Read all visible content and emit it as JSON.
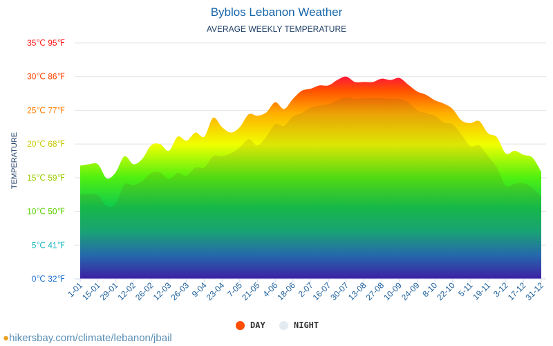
{
  "title": "Byblos Lebanon Weather",
  "subtitle": "AVERAGE WEEKLY TEMPERATURE",
  "source": "hikersbay.com/climate/lebanon/jbail",
  "chart_data": {
    "type": "area",
    "title": "Byblos Lebanon Weather",
    "subtitle": "AVERAGE WEEKLY TEMPERATURE",
    "ylabel": "TEMPERATURE",
    "ylim": [
      0,
      35
    ],
    "grid": true,
    "legend_position": "bottom",
    "yticks": [
      {
        "c": 0,
        "label": "0℃ 32℉",
        "color": "#1e6fd0"
      },
      {
        "c": 5,
        "label": "5℃ 41℉",
        "color": "#1ab8c0"
      },
      {
        "c": 10,
        "label": "10℃ 50℉",
        "color": "#5cd000"
      },
      {
        "c": 15,
        "label": "15℃ 59℉",
        "color": "#99cc00"
      },
      {
        "c": 20,
        "label": "20℃ 68℉",
        "color": "#c8c800"
      },
      {
        "c": 25,
        "label": "25℃ 77℉",
        "color": "#ff7a00"
      },
      {
        "c": 30,
        "label": "30℃ 86℉",
        "color": "#ff4500"
      },
      {
        "c": 35,
        "label": "35℃ 95℉",
        "color": "#ff1a1a"
      }
    ],
    "xticks": [
      "1-01",
      "15-01",
      "29-01",
      "12-02",
      "26-02",
      "12-03",
      "26-03",
      "9-04",
      "23-04",
      "7-05",
      "21-05",
      "4-06",
      "18-06",
      "2-07",
      "16-07",
      "30-07",
      "13-08",
      "27-08",
      "10-09",
      "24-09",
      "8-10",
      "22-10",
      "5-11",
      "19-11",
      "3-12",
      "17-12",
      "31-12"
    ],
    "series": [
      {
        "name": "DAY",
        "color": "#ff4d00",
        "values": [
          16.8,
          17,
          17,
          14.9,
          15.8,
          18.2,
          17,
          17.8,
          19.8,
          20,
          19,
          21.1,
          20.5,
          21.7,
          21.1,
          23.9,
          22.5,
          21.7,
          22.5,
          24.4,
          24.2,
          24.7,
          26.2,
          25.2,
          26.7,
          27.9,
          28.2,
          28.7,
          28.7,
          29.5,
          30,
          29.2,
          29.2,
          29.2,
          29.7,
          29.5,
          29.8,
          28.8,
          27.8,
          27.3,
          26.5,
          26,
          25.2,
          23.5,
          23.1,
          23.4,
          21.6,
          21,
          18.6,
          19,
          18.4,
          18,
          15.9
        ]
      },
      {
        "name": "NIGHT",
        "color": "#e3eaf2",
        "values": [
          12.5,
          12.6,
          12.4,
          10.8,
          11.1,
          14,
          13.9,
          14.5,
          15.7,
          15.8,
          14.8,
          15.7,
          15.3,
          16.5,
          16.5,
          18.2,
          18.2,
          18.6,
          19.5,
          20.7,
          19.8,
          21.1,
          22.9,
          22.7,
          24.1,
          24.6,
          25.4,
          25.7,
          25.9,
          26.5,
          26.9,
          26.7,
          26.8,
          26.8,
          26.8,
          26.7,
          26.7,
          26.2,
          25,
          24.6,
          24.2,
          23.2,
          22.9,
          21.4,
          19.7,
          19.8,
          18.2,
          16.5,
          13.8,
          14.1,
          14.2,
          13.5,
          12.2
        ]
      }
    ]
  }
}
